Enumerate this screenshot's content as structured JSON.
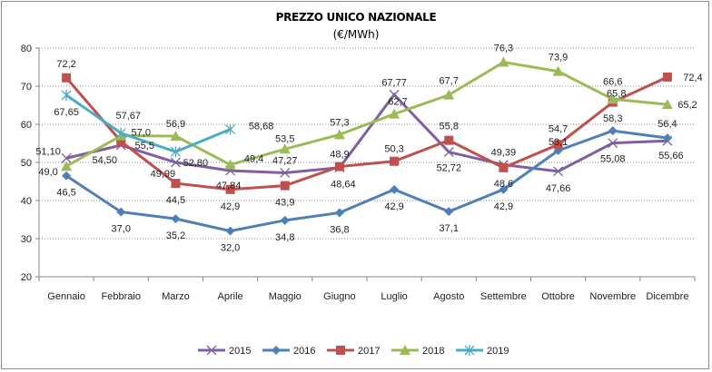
{
  "chart_data": {
    "type": "line",
    "title": "PREZZO UNICO NAZIONALE",
    "subtitle": "(€/MWh)",
    "xlabel": "",
    "ylabel": "",
    "ylim": [
      20,
      80
    ],
    "yticks": [
      "20",
      "30",
      "40",
      "50",
      "60",
      "70",
      "80"
    ],
    "grid": true,
    "legend": "bottom",
    "categories": [
      "Gennaio",
      "Febbraio",
      "Marzo",
      "Aprile",
      "Maggio",
      "Giugno",
      "Luglio",
      "Agosto",
      "Settembre",
      "Ottobre",
      "Novembre",
      "Dicembre"
    ],
    "series": [
      {
        "name": "2015",
        "color": "#7f5fa0",
        "marker": "x",
        "values": [
          51.1,
          54.5,
          49.99,
          47.84,
          47.27,
          48.64,
          67.77,
          52.72,
          49.39,
          47.66,
          55.08,
          55.66
        ],
        "labels": [
          "51,10",
          "54,50",
          "49,99",
          "47,84",
          "47,27",
          "48,64",
          "67,77",
          "52,72",
          "49,39",
          "47,66",
          "55,08",
          "55,66"
        ]
      },
      {
        "name": "2016",
        "color": "#4f7fb8",
        "marker": "diamond",
        "values": [
          46.5,
          37.0,
          35.2,
          32.0,
          34.8,
          36.8,
          42.9,
          37.1,
          42.9,
          53.1,
          58.3,
          56.4
        ],
        "labels": [
          "46,5",
          "37,0",
          "35,2",
          "32,0",
          "34,8",
          "36,8",
          "42,9",
          "37,1",
          "42,9",
          "53,1",
          "58,3",
          "56,4"
        ]
      },
      {
        "name": "2017",
        "color": "#c0504d",
        "marker": "square",
        "values": [
          72.2,
          55.5,
          44.5,
          42.9,
          43.9,
          48.9,
          50.3,
          55.8,
          48.6,
          54.7,
          65.8,
          72.4
        ],
        "labels": [
          "72,2",
          "55,5",
          "44,5",
          "42,9",
          "43,9",
          "48,9",
          "50,3",
          "55,8",
          "48,6",
          "54,7",
          "65,8",
          "72,4"
        ]
      },
      {
        "name": "2018",
        "color": "#9bbb59",
        "marker": "triangle",
        "values": [
          49.0,
          57.0,
          56.9,
          49.4,
          53.5,
          57.3,
          62.7,
          67.7,
          76.3,
          73.9,
          66.6,
          65.2
        ],
        "labels": [
          "49,0",
          "57,0",
          "56,9",
          "49,4",
          "53,5",
          "57,3",
          "62,7",
          "67,7",
          "76,3",
          "73,9",
          "66,6",
          "65,2"
        ]
      },
      {
        "name": "2019",
        "color": "#4bacc6",
        "marker": "star",
        "values": [
          67.65,
          57.67,
          52.8,
          58.68,
          null,
          null,
          null,
          null,
          null,
          null,
          null,
          null
        ],
        "labels": [
          "67,65",
          "57,67",
          "52,80",
          "58,68",
          "",
          "",
          "",
          "",
          "",
          "",
          "",
          ""
        ]
      }
    ]
  }
}
